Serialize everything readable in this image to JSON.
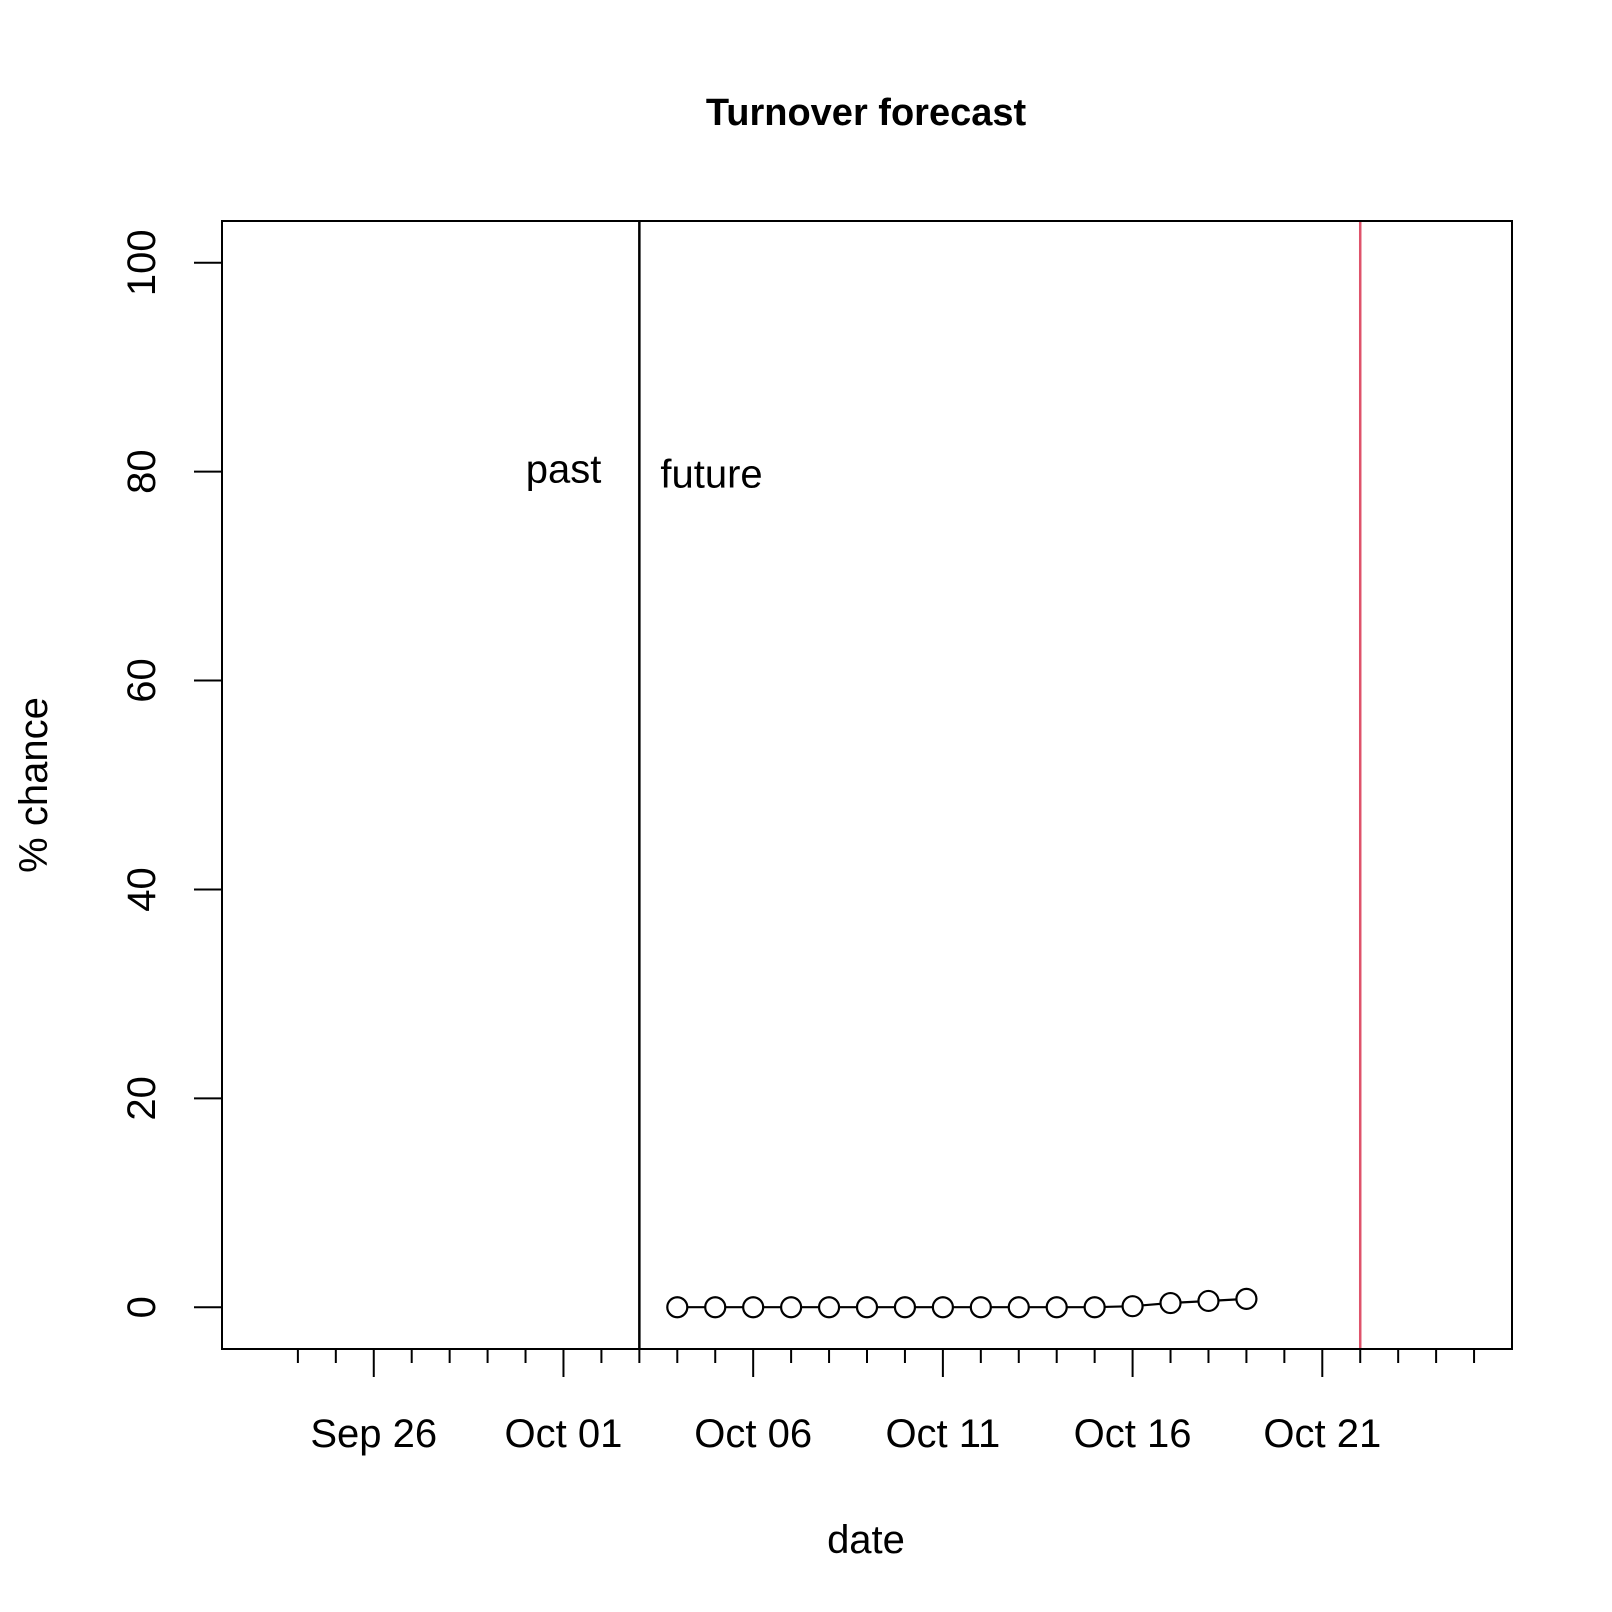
{
  "chart_data": {
    "type": "line",
    "title": "Turnover forecast",
    "xlabel": "date",
    "ylabel": "% chance",
    "xlim": [
      "2020-09-22",
      "2020-10-26"
    ],
    "ylim": [
      -4,
      104
    ],
    "x_ticks": {
      "major": [
        {
          "date": "2020-09-26",
          "label": "Sep 26"
        },
        {
          "date": "2020-10-01",
          "label": "Oct 01"
        },
        {
          "date": "2020-10-06",
          "label": "Oct 06"
        },
        {
          "date": "2020-10-11",
          "label": "Oct 11"
        },
        {
          "date": "2020-10-16",
          "label": "Oct 16"
        },
        {
          "date": "2020-10-21",
          "label": "Oct 21"
        }
      ],
      "minor": [
        "2020-09-24",
        "2020-09-25",
        "2020-09-27",
        "2020-09-28",
        "2020-09-29",
        "2020-09-30",
        "2020-10-02",
        "2020-10-03",
        "2020-10-04",
        "2020-10-05",
        "2020-10-07",
        "2020-10-08",
        "2020-10-09",
        "2020-10-10",
        "2020-10-12",
        "2020-10-13",
        "2020-10-14",
        "2020-10-15",
        "2020-10-17",
        "2020-10-18",
        "2020-10-19",
        "2020-10-20",
        "2020-10-22",
        "2020-10-23",
        "2020-10-24",
        "2020-10-25"
      ]
    },
    "y_ticks": [
      {
        "value": 0,
        "label": "0"
      },
      {
        "value": 20,
        "label": "20"
      },
      {
        "value": 40,
        "label": "40"
      },
      {
        "value": 60,
        "label": "60"
      },
      {
        "value": 80,
        "label": "80"
      },
      {
        "value": 100,
        "label": "100"
      }
    ],
    "series": [
      {
        "x": [
          "2020-10-04",
          "2020-10-05",
          "2020-10-06",
          "2020-10-07",
          "2020-10-08",
          "2020-10-09",
          "2020-10-10",
          "2020-10-11",
          "2020-10-12",
          "2020-10-13",
          "2020-10-14",
          "2020-10-15",
          "2020-10-16",
          "2020-10-17",
          "2020-10-18",
          "2020-10-19"
        ],
        "values": [
          0,
          0,
          0,
          0,
          0,
          0,
          0,
          0,
          0,
          0,
          0,
          0,
          0.1,
          0.4,
          0.6,
          0.8
        ],
        "color": "#000000",
        "marker": "open-circle"
      }
    ],
    "vlines": [
      {
        "date": "2020-10-03",
        "color": "#000000"
      },
      {
        "date": "2020-10-22",
        "color": "#DF536B"
      }
    ],
    "annotations": [
      {
        "text": "past",
        "date": "2020-10-03",
        "value": 80,
        "side": "left"
      },
      {
        "text": "future",
        "date": "2020-10-03",
        "value": 80,
        "side": "right"
      }
    ],
    "grid": false,
    "legend": "none"
  }
}
